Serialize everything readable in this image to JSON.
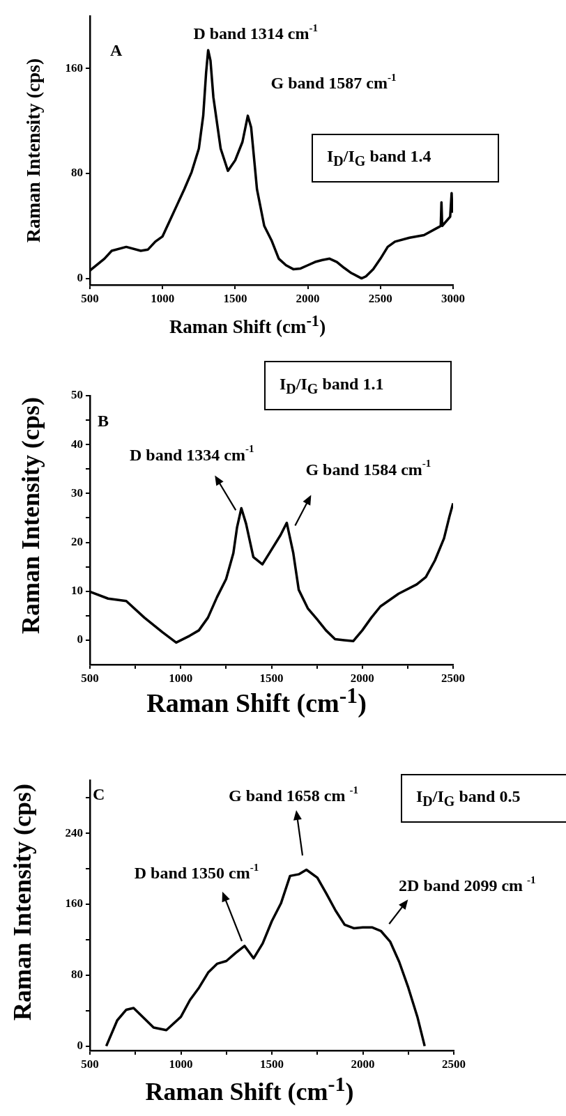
{
  "chart_data": [
    {
      "type": "line",
      "xlabel": "Raman Shift (cm$^{-1}$)",
      "ylabel": "Raman Intensity (cps)",
      "xlim": [
        500,
        3000
      ],
      "ylim": [
        -5,
        200
      ],
      "xticks": [
        500,
        1000,
        1500,
        2000,
        2500,
        3000
      ],
      "yticks": [
        0,
        80,
        160
      ],
      "x": [
        500,
        600,
        650,
        750,
        850,
        900,
        950,
        1000,
        1050,
        1100,
        1150,
        1200,
        1250,
        1280,
        1300,
        1314,
        1330,
        1350,
        1400,
        1450,
        1500,
        1550,
        1587,
        1610,
        1650,
        1700,
        1750,
        1800,
        1850,
        1900,
        1950,
        2000,
        2050,
        2100,
        2150,
        2200,
        2250,
        2300,
        2370,
        2400,
        2450,
        2500,
        2550,
        2600,
        2700,
        2800,
        2900,
        2915,
        2920,
        2925,
        2980,
        2990,
        2995
      ],
      "series": [
        {
          "color": "#000000",
          "values": [
            6,
            15,
            21,
            24,
            21,
            22,
            28,
            32,
            44,
            56,
            68,
            81,
            99,
            124,
            157,
            174,
            166,
            138,
            99,
            82,
            90,
            104,
            124,
            115,
            68,
            40,
            29,
            15,
            10,
            7,
            7.5,
            10,
            12.5,
            14,
            15,
            12.5,
            8,
            4,
            0,
            1.5,
            7,
            15,
            24,
            28,
            31,
            33,
            39,
            40,
            58,
            40,
            47,
            65,
            50
          ]
        }
      ],
      "annotations": [
        "A",
        "I$_{D}$/I$_{G}$ band 1.4",
        {
          "text": "D band 1314 cm$^{-1}$",
          "x": 1314,
          "y": 174
        },
        {
          "text": "G band 1587 cm$^{-1}$",
          "x": 1587,
          "y": 124
        }
      ]
    },
    {
      "type": "line",
      "xlabel": "Raman Shift (cm$^{-1}$)",
      "ylabel": "Raman Intensity (cps)",
      "xlim": [
        500,
        2500
      ],
      "ylim": [
        -5,
        50
      ],
      "xticks": [
        500,
        {
          "value": 750,
          "label": null
        },
        1000,
        {
          "value": 1250,
          "label": null
        },
        1500,
        {
          "value": 1750,
          "label": null
        },
        2000,
        {
          "value": 2250,
          "label": null
        },
        2500
      ],
      "yticks": [
        0,
        {
          "value": 5,
          "label": null
        },
        10,
        {
          "value": 15,
          "label": null
        },
        20,
        {
          "value": 25,
          "label": null
        },
        30,
        {
          "value": 35,
          "label": null
        },
        40,
        {
          "value": 45,
          "label": null
        },
        50
      ],
      "x": [
        500,
        600,
        700,
        800,
        900,
        975,
        1050,
        1100,
        1150,
        1200,
        1250,
        1290,
        1310,
        1334,
        1360,
        1400,
        1450,
        1500,
        1550,
        1584,
        1620,
        1650,
        1700,
        1750,
        1800,
        1850,
        1900,
        1950,
        2000,
        2050,
        2100,
        2200,
        2300,
        2350,
        2400,
        2450,
        2480,
        2500
      ],
      "series": [
        {
          "color": "#000000",
          "values": [
            9.9,
            8.5,
            8,
            4.6,
            1.6,
            -0.5,
            0.9,
            2,
            4.6,
            8.8,
            12.5,
            17.8,
            23,
            27,
            23.8,
            17,
            15.5,
            18.5,
            21.5,
            24,
            17.8,
            10.3,
            6.5,
            4.3,
            2,
            0.2,
            0,
            -0.2,
            2,
            4.6,
            6.9,
            9.5,
            11.4,
            12.9,
            16.3,
            20.8,
            25.3,
            28
          ]
        }
      ],
      "annotations": [
        "B",
        "I$_{D}$/I$_{G}$ band 1.1",
        {
          "text": "D band 1334 cm$^{-1}$",
          "x": 1334,
          "y": 27
        },
        {
          "text": "G band 1584 cm$^{-1}$",
          "x": 1584,
          "y": 24
        }
      ]
    },
    {
      "type": "line",
      "xlabel": "Raman Shift (cm$^{-1}$)",
      "ylabel": "Raman Intensity (cps)",
      "xlim": [
        500,
        2500
      ],
      "ylim": [
        -5,
        300
      ],
      "xticks": [
        500,
        {
          "value": 750,
          "label": null
        },
        1000,
        {
          "value": 1250,
          "label": null
        },
        1500,
        {
          "value": 1750,
          "label": null
        },
        2000,
        {
          "value": 2250,
          "label": null
        },
        2500
      ],
      "yticks": [
        0,
        {
          "value": 40,
          "label": null
        },
        80,
        {
          "value": 120,
          "label": null
        },
        160,
        {
          "value": 200,
          "label": null
        },
        240,
        {
          "value": 280,
          "label": null
        }
      ],
      "x": [
        590,
        650,
        700,
        740,
        800,
        850,
        920,
        1000,
        1050,
        1100,
        1150,
        1200,
        1250,
        1300,
        1350,
        1400,
        1450,
        1500,
        1550,
        1600,
        1650,
        1690,
        1750,
        1800,
        1850,
        1900,
        1950,
        2000,
        2050,
        2099,
        2150,
        2200,
        2250,
        2300,
        2340
      ],
      "series": [
        {
          "color": "#000000",
          "values": [
            0,
            29,
            41,
            43,
            31,
            21,
            18,
            33,
            52,
            66,
            83,
            93,
            96,
            105,
            113,
            99,
            116,
            141,
            161,
            192,
            194,
            199,
            190,
            172,
            153,
            137,
            133,
            134,
            134,
            130,
            118,
            95,
            66,
            33,
            0
          ]
        }
      ],
      "annotations": [
        "C",
        "I$_{D}$/I$_{G}$ band 0.5",
        "D band 1350 cm$^{-1}$",
        "G band 1658 cm $^{-1}$",
        {
          "text": "2D band 2099 cm $^{-1}$",
          "x": 2099,
          "y": 130
        }
      ]
    }
  ]
}
